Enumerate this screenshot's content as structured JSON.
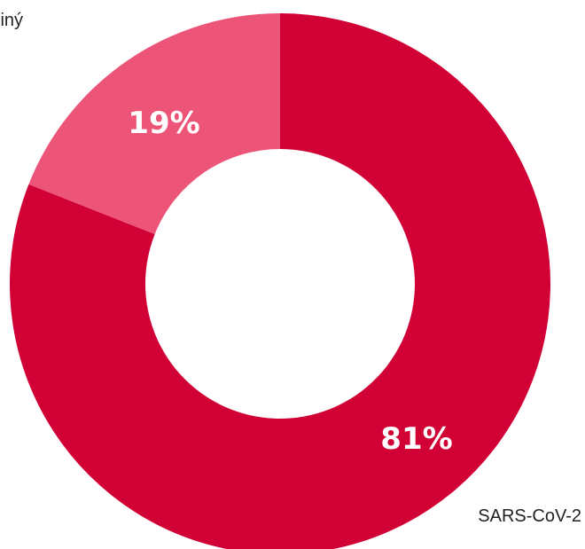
{
  "chart_data": {
    "type": "pie",
    "donut": true,
    "categories": [
      "SARS-CoV-2",
      "jiný"
    ],
    "values": [
      81,
      19
    ],
    "value_labels": [
      "81%",
      "19%"
    ],
    "colors": [
      "#d10035",
      "#ec5478"
    ],
    "title": "",
    "legend": "none",
    "grid": false
  }
}
